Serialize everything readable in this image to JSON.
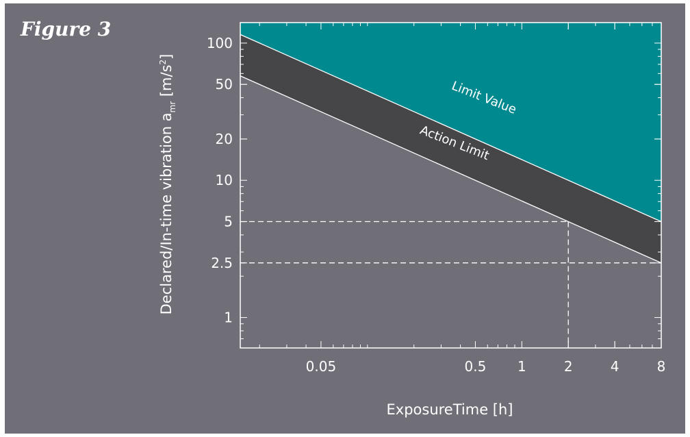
{
  "figure_label": "Figure 3",
  "colors": {
    "panel_background": "#706e77",
    "limit_value_band": "#008a8f",
    "action_limit_band": "#464548",
    "line": "#ffffff"
  },
  "chart_data": {
    "type": "area",
    "title": "",
    "xlabel": "ExposureTime [h]",
    "ylabel_main": "Declared/In-time vibration a",
    "ylabel_subscript": "mr",
    "ylabel_unit_pre": " [m/s",
    "ylabel_unit_sup": "2",
    "ylabel_unit_post": "]",
    "x_scale": "log",
    "y_scale": "log",
    "xlim": [
      0.015,
      8
    ],
    "ylim": [
      0.6,
      141
    ],
    "x_ticks": [
      {
        "value": 0.05,
        "label": "0.05"
      },
      {
        "value": 0.5,
        "label": "0.5"
      },
      {
        "value": 1,
        "label": "1"
      },
      {
        "value": 2,
        "label": "2"
      },
      {
        "value": 4,
        "label": "4"
      },
      {
        "value": 8,
        "label": "8"
      }
    ],
    "y_ticks": [
      {
        "value": 1,
        "label": "1"
      },
      {
        "value": 2.5,
        "label": "2.5"
      },
      {
        "value": 5,
        "label": "5"
      },
      {
        "value": 10,
        "label": "10"
      },
      {
        "value": 20,
        "label": "20"
      },
      {
        "value": 50,
        "label": "50"
      },
      {
        "value": 100,
        "label": "100"
      }
    ],
    "series": [
      {
        "name": "Limit Value",
        "x": [
          0.015,
          8
        ],
        "y": [
          115.5,
          5
        ]
      },
      {
        "name": "Action Limit",
        "x": [
          0.015,
          8
        ],
        "y": [
          57.7,
          2.5
        ]
      }
    ],
    "reference_lines": [
      {
        "y": 5,
        "x_end": 2
      },
      {
        "y": 2.5,
        "x_end": 8
      },
      {
        "x": 2,
        "y_end": 5
      }
    ],
    "grid": false
  }
}
